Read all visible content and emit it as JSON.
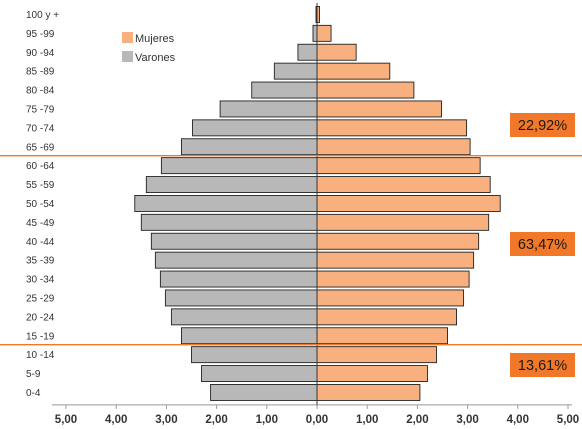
{
  "chart_data": {
    "type": "bar",
    "orientation": "horizontal",
    "subtype": "population-pyramid",
    "categories": [
      "100 y +",
      "95 -99",
      "90 -94",
      "85 -89",
      "80 -84",
      "75 -79",
      "70 -74",
      "65 -69",
      "60 -64",
      "55 -59",
      "50 -54",
      "45 -49",
      "40 -44",
      "35 -39",
      "30 -34",
      "25 -29",
      "20 -24",
      "15 -19",
      "10 -14",
      "5-9",
      "0-4"
    ],
    "series": [
      {
        "name": "Mujeres",
        "side": "right",
        "color": "#F8B07F",
        "values": [
          0.05,
          0.28,
          0.78,
          1.45,
          1.93,
          2.48,
          2.98,
          3.05,
          3.25,
          3.45,
          3.65,
          3.42,
          3.22,
          3.12,
          3.03,
          2.92,
          2.78,
          2.6,
          2.38,
          2.2,
          2.05
        ]
      },
      {
        "name": "Varones",
        "side": "left",
        "color": "#B8B8B8",
        "values": [
          0.02,
          0.08,
          0.38,
          0.85,
          1.3,
          1.93,
          2.48,
          2.7,
          3.1,
          3.4,
          3.63,
          3.5,
          3.3,
          3.22,
          3.12,
          3.02,
          2.9,
          2.7,
          2.5,
          2.3,
          2.12
        ]
      }
    ],
    "xaxis_ticks": [
      "5,00",
      "4,00",
      "3,00",
      "2,00",
      "1,00",
      "0,00",
      "1,00",
      "2,00",
      "3,00",
      "4,00",
      "5,00"
    ],
    "xlim": [
      -5,
      5
    ],
    "divider_lines_between": [
      [
        "65-69",
        "60-64"
      ],
      [
        "15-19",
        "10-14"
      ]
    ],
    "divider_color": "#F07828",
    "annotations": [
      {
        "text": "22,92%",
        "group": "65+"
      },
      {
        "text": "63,47%",
        "group": "15-64"
      },
      {
        "text": "13,61%",
        "group": "0-14"
      }
    ],
    "annotation_color": "#F07828",
    "legend_placement": "top-left"
  }
}
